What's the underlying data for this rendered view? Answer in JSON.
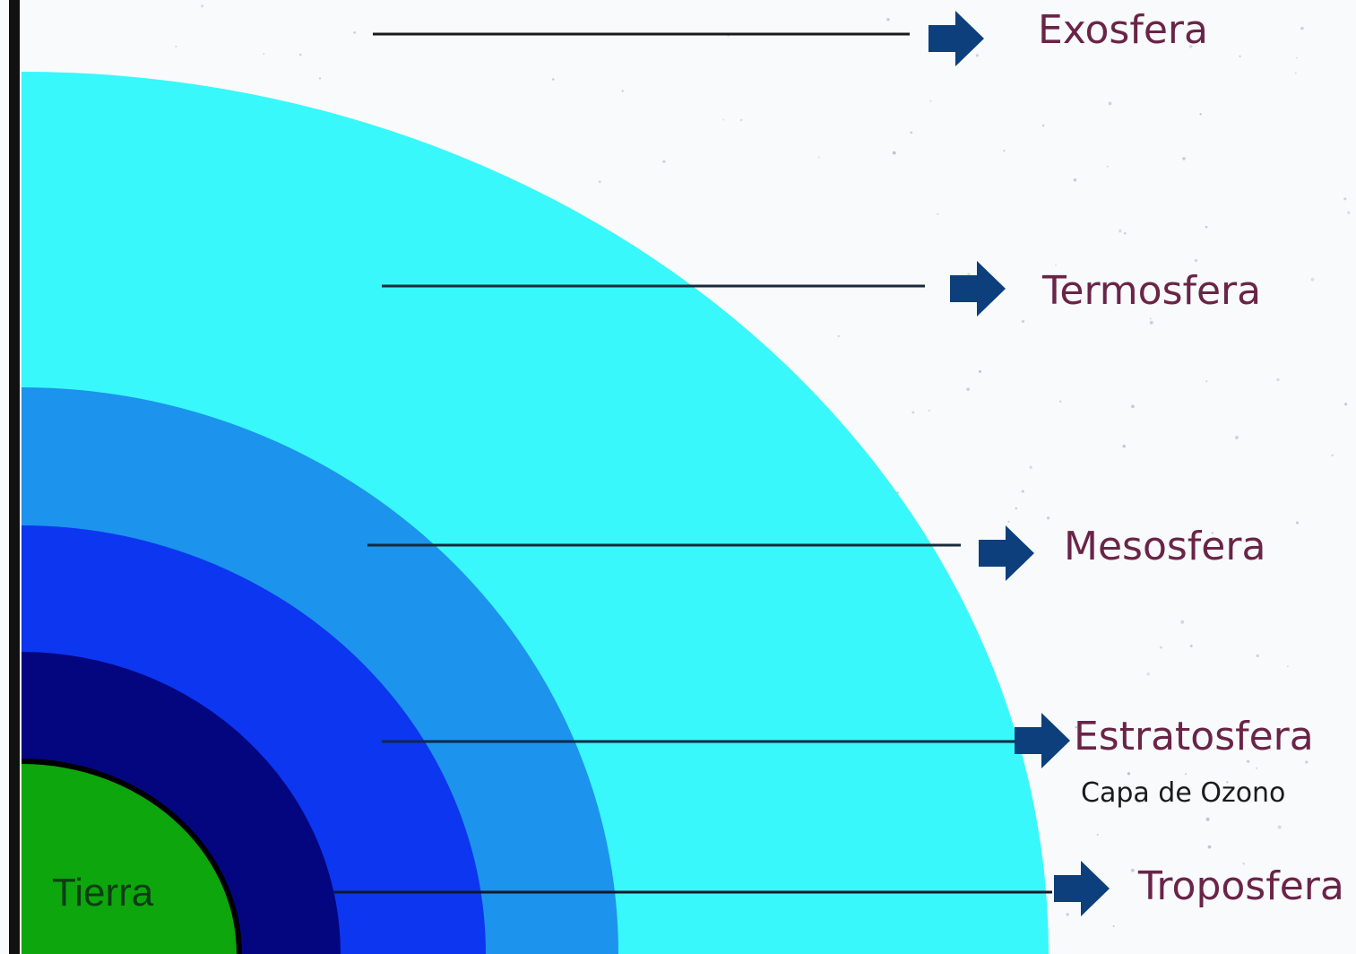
{
  "labels": {
    "exosfera": "Exosfera",
    "termosfera": "Termosfera",
    "mesosfera": "Mesosfera",
    "estratosfera": "Estratosfera",
    "capa_ozono": "Capa de Ozono",
    "troposfera": "Troposfera",
    "tierra": "Tierra"
  },
  "colors": {
    "space_background": "#f8fafc",
    "termosfera_layer": "#38f8fb",
    "mesosfera_layer": "#1c93ec",
    "estratosfera_layer": "#0d36f0",
    "troposfera_layer": "#03067f",
    "earth": "#0da60d",
    "arrow": "#0c3f7c",
    "label_text": "#6a2447",
    "axis_line": "#111111"
  },
  "icons": {
    "pointer": "arrow-right-icon"
  }
}
